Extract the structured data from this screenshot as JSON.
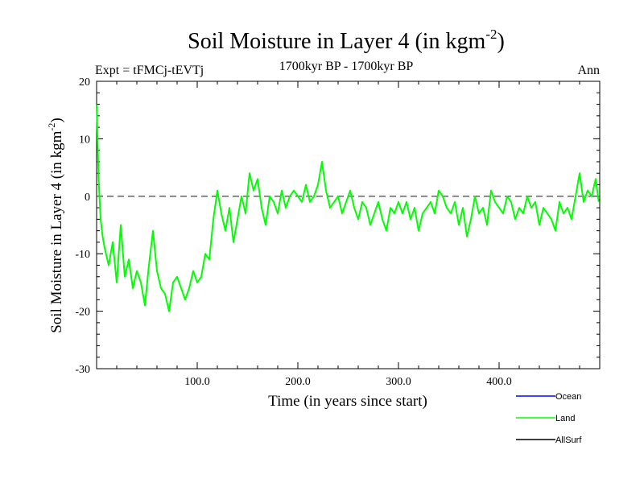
{
  "chart_data": {
    "type": "line",
    "title_main": "Soil Moisture in Layer 4 (in kgm",
    "title_sup": "-2",
    "title_close": ")",
    "subtitle": "1700kyr BP - 1700kyr BP",
    "expt_label": "Expt = tFMCj-tEVTj",
    "season_label": "Ann",
    "xlabel": "Time (in years since start)",
    "ylabel_main": "Soil Moisture in Layer 4 (in kgm",
    "ylabel_sup": "-2",
    "ylabel_close": ")",
    "xlim": [
      0,
      500
    ],
    "ylim": [
      -30,
      20
    ],
    "x_ticks": [
      100,
      200,
      300,
      400
    ],
    "x_tick_labels": [
      "100.0",
      "200.0",
      "300.0",
      "400.0"
    ],
    "y_ticks": [
      20,
      10,
      0,
      -10,
      -20,
      -30
    ],
    "y_tick_labels": [
      "20",
      "10",
      "0",
      "-10",
      "-20",
      "-30"
    ],
    "zero_line": 0,
    "legend_position": "bottom-right",
    "series": [
      {
        "name": "Ocean",
        "color": "#0000ff",
        "x": [],
        "values": []
      },
      {
        "name": "Land",
        "color": "#00ff00",
        "x": [
          0,
          2,
          4,
          6,
          8,
          12,
          16,
          20,
          24,
          28,
          32,
          36,
          40,
          44,
          48,
          52,
          56,
          60,
          64,
          68,
          72,
          76,
          80,
          84,
          88,
          92,
          96,
          100,
          104,
          108,
          112,
          116,
          120,
          124,
          128,
          132,
          136,
          140,
          144,
          148,
          152,
          156,
          160,
          164,
          168,
          172,
          176,
          180,
          184,
          188,
          192,
          196,
          200,
          204,
          208,
          212,
          216,
          220,
          224,
          228,
          232,
          236,
          240,
          244,
          248,
          252,
          256,
          260,
          264,
          268,
          272,
          276,
          280,
          284,
          288,
          292,
          296,
          300,
          304,
          308,
          312,
          316,
          320,
          324,
          328,
          332,
          336,
          340,
          344,
          348,
          352,
          356,
          360,
          364,
          368,
          372,
          376,
          380,
          384,
          388,
          392,
          396,
          400,
          404,
          408,
          412,
          416,
          420,
          424,
          428,
          432,
          436,
          440,
          444,
          448,
          452,
          456,
          460,
          464,
          468,
          472,
          476,
          480,
          484,
          488,
          492,
          496,
          499
        ],
        "values": [
          16,
          3,
          -4,
          -7,
          -9,
          -12,
          -8,
          -15,
          -5,
          -14,
          -11,
          -16,
          -13,
          -15,
          -19,
          -12,
          -6,
          -13,
          -16,
          -17,
          -20,
          -15,
          -14,
          -16,
          -18,
          -16,
          -13,
          -15,
          -14,
          -10,
          -11,
          -4,
          1,
          -3,
          -6,
          -2,
          -8,
          -4,
          0,
          -3,
          4,
          1,
          3,
          -2,
          -5,
          0,
          -1,
          -3,
          1,
          -2,
          0,
          1,
          0,
          -1,
          2,
          -1,
          0,
          2,
          6,
          1,
          -2,
          -1,
          0,
          -3,
          -1,
          1,
          -2,
          -4,
          -1,
          -2,
          -5,
          -3,
          -1,
          -4,
          -6,
          -2,
          -3,
          -1,
          -3,
          -1,
          -4,
          -2,
          -6,
          -3,
          -2,
          -1,
          -3,
          1,
          0,
          -2,
          -3,
          -1,
          -5,
          -2,
          -7,
          -4,
          0,
          -3,
          -2,
          -5,
          1,
          -1,
          -2,
          -3,
          0,
          -1,
          -4,
          -2,
          -3,
          0,
          -2,
          -1,
          -5,
          -2,
          -3,
          -4,
          -6,
          -1,
          -3,
          -2,
          -4,
          0,
          4,
          -1,
          1,
          0,
          3,
          -1
        ]
      },
      {
        "name": "AllSurf",
        "color": "#000000",
        "x": [],
        "values": []
      }
    ]
  }
}
